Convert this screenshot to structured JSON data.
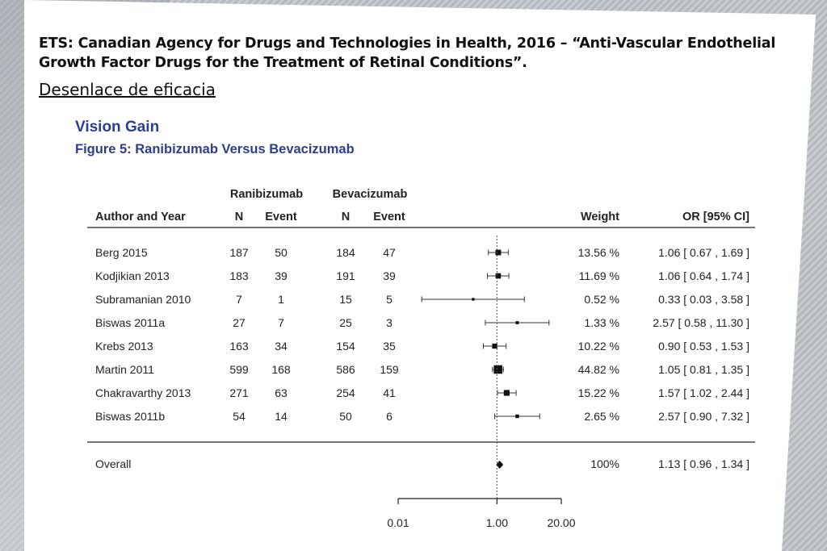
{
  "slide": {
    "heading": "ETS: Canadian Agency for Drugs and Technologies in Health, 2016 – “Anti-Vascular Endothelial Growth Factor Drugs for the Treatment of Retinal Conditions”.",
    "subheading": "Desenlace de eficacia"
  },
  "chart_data": {
    "type": "forest",
    "title": "Vision Gain",
    "subtitle": "Figure 5: Ranibizumab Versus Bevacizumab",
    "group_headers": [
      "Ranibizumab",
      "Bevacizumab"
    ],
    "columns": [
      "Author and Year",
      "N",
      "Event",
      "N",
      "Event",
      "Weight",
      "OR [95% CI]"
    ],
    "studies": [
      {
        "label": "Berg 2015",
        "n1": 187,
        "e1": 50,
        "n2": 184,
        "e2": 47,
        "weight": "13.56 %",
        "or": 1.06,
        "lo": 0.67,
        "hi": 1.69,
        "ci_text": "1.06 [ 0.67 ,  1.69 ]"
      },
      {
        "label": "Kodjikian 2013",
        "n1": 183,
        "e1": 39,
        "n2": 191,
        "e2": 39,
        "weight": "11.69 %",
        "or": 1.06,
        "lo": 0.64,
        "hi": 1.74,
        "ci_text": "1.06 [ 0.64 ,  1.74 ]"
      },
      {
        "label": "Subramanian 2010",
        "n1": 7,
        "e1": 1,
        "n2": 15,
        "e2": 5,
        "weight": "0.52 %",
        "or": 0.33,
        "lo": 0.03,
        "hi": 3.58,
        "ci_text": "0.33 [ 0.03 ,  3.58 ]"
      },
      {
        "label": "Biswas 2011a",
        "n1": 27,
        "e1": 7,
        "n2": 25,
        "e2": 3,
        "weight": "1.33 %",
        "or": 2.57,
        "lo": 0.58,
        "hi": 11.3,
        "ci_text": "2.57 [ 0.58 , 11.30 ]"
      },
      {
        "label": "Krebs 2013",
        "n1": 163,
        "e1": 34,
        "n2": 154,
        "e2": 35,
        "weight": "10.22 %",
        "or": 0.9,
        "lo": 0.53,
        "hi": 1.53,
        "ci_text": "0.90 [ 0.53 ,  1.53 ]"
      },
      {
        "label": "Martin 2011",
        "n1": 599,
        "e1": 168,
        "n2": 586,
        "e2": 159,
        "weight": "44.82 %",
        "or": 1.05,
        "lo": 0.81,
        "hi": 1.35,
        "ci_text": "1.05 [ 0.81 ,  1.35 ]"
      },
      {
        "label": "Chakravarthy 2013",
        "n1": 271,
        "e1": 63,
        "n2": 254,
        "e2": 41,
        "weight": "15.22 %",
        "or": 1.57,
        "lo": 1.02,
        "hi": 2.44,
        "ci_text": "1.57 [ 1.02 ,  2.44 ]"
      },
      {
        "label": "Biswas 2011b",
        "n1": 54,
        "e1": 14,
        "n2": 50,
        "e2": 6,
        "weight": "2.65 %",
        "or": 2.57,
        "lo": 0.9,
        "hi": 7.32,
        "ci_text": "2.57 [ 0.90 ,  7.32 ]"
      }
    ],
    "overall": {
      "label": "Overall",
      "weight": "100%",
      "or": 1.13,
      "lo": 0.96,
      "hi": 1.34,
      "ci_text": "1.13 [ 0.96 ,  1.34 ]"
    },
    "x_axis": {
      "scale": "log",
      "ticks": [
        0.01,
        1.0,
        20.0
      ],
      "tick_labels": [
        "0.01",
        "1.00",
        "20.00"
      ],
      "reference_line": 1.0
    }
  }
}
